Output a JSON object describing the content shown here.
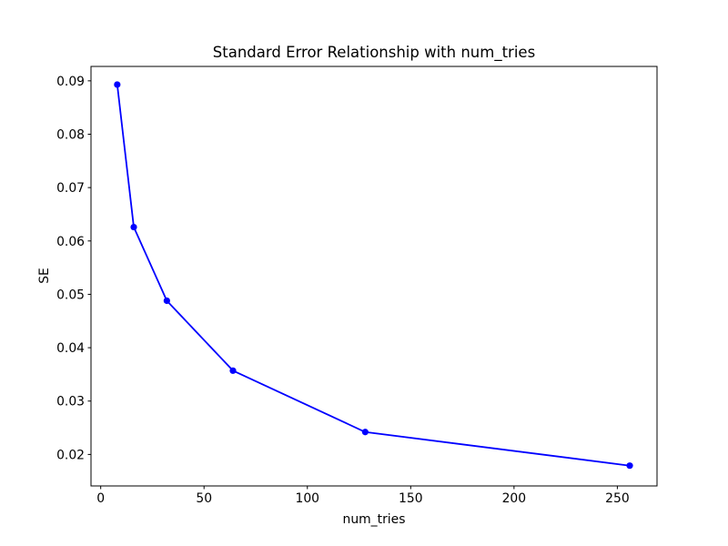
{
  "figure": {
    "background_color": "#ffffff"
  },
  "chart_data": {
    "type": "line",
    "title": "Standard Error Relationship with num_tries",
    "xlabel": "num_tries",
    "ylabel": "SE",
    "x": [
      8,
      16,
      32,
      64,
      128,
      256
    ],
    "y": [
      0.0893,
      0.0626,
      0.0488,
      0.0357,
      0.0242,
      0.0179
    ],
    "line_color": "#0000ff",
    "marker": "circle",
    "marker_color": "#0000ff",
    "xlim": [
      -4.7,
      269.2
    ],
    "ylim": [
      0.0141,
      0.0927
    ],
    "xticks": [
      0,
      50,
      100,
      150,
      200,
      250
    ],
    "xticklabels": [
      "0",
      "50",
      "100",
      "150",
      "200",
      "250"
    ],
    "yticks": [
      0.02,
      0.03,
      0.04,
      0.05,
      0.06,
      0.07,
      0.08,
      0.09
    ],
    "yticklabels": [
      "0.02",
      "0.03",
      "0.04",
      "0.05",
      "0.06",
      "0.07",
      "0.08",
      "0.09"
    ],
    "grid": false,
    "legend": "none",
    "spine_color": "#000000"
  }
}
